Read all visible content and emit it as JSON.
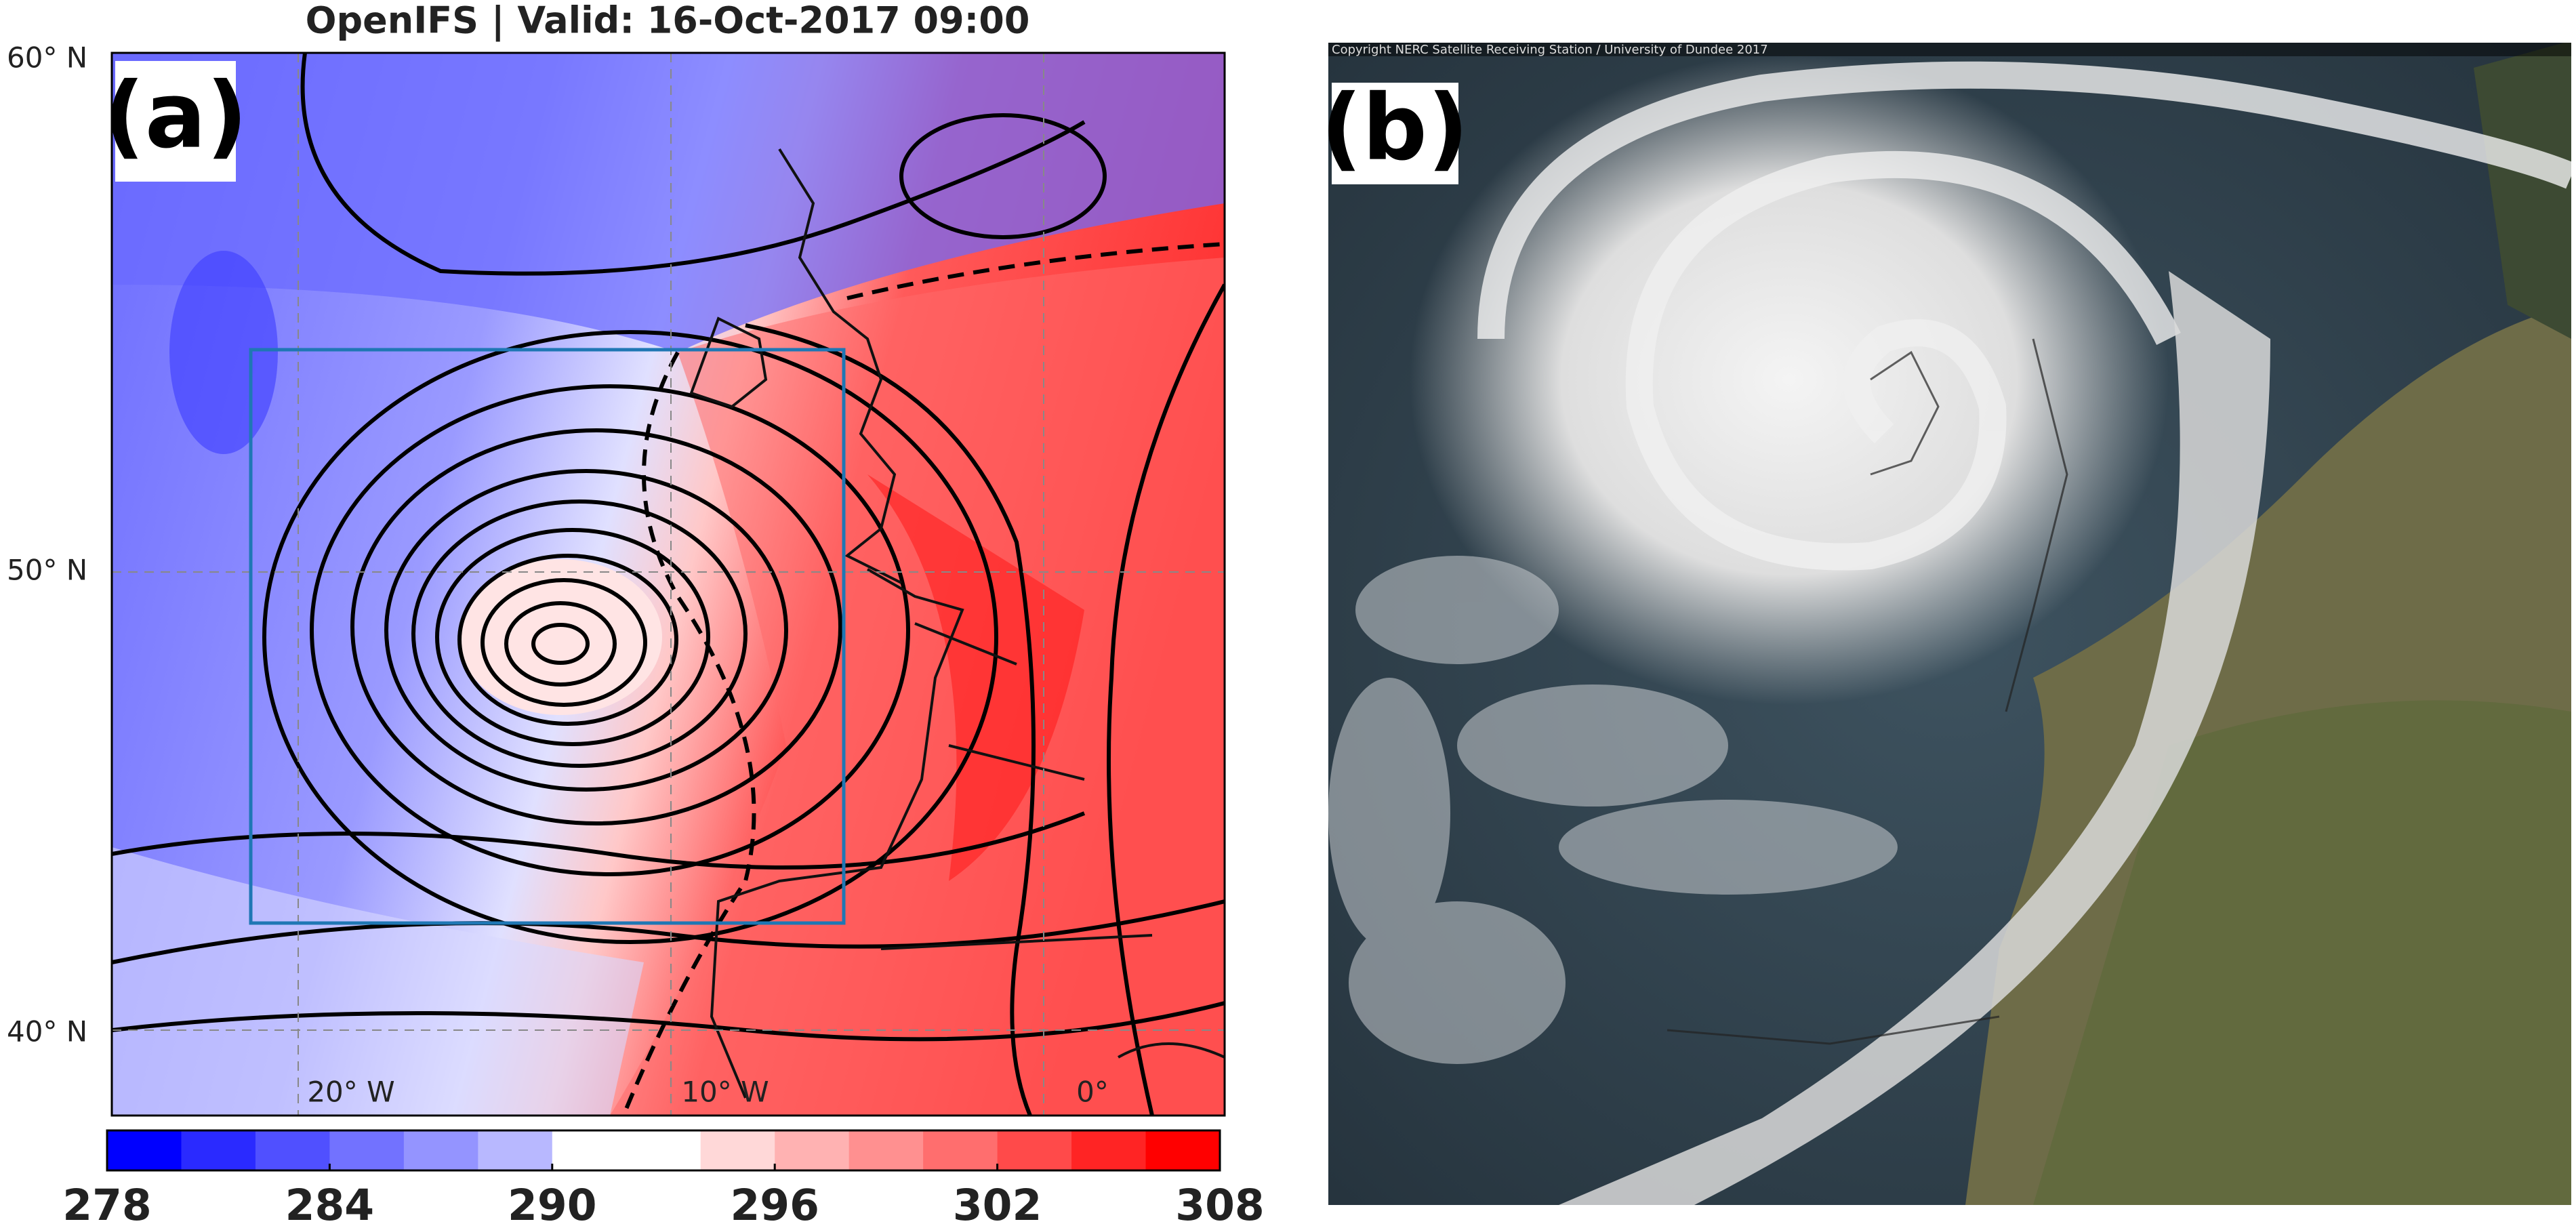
{
  "panel_a": {
    "title": "OpenIFS | Valid: 16-Oct-2017 09:00",
    "label": "(a)",
    "lat_labels": [
      "60° N",
      "50° N",
      "40° N"
    ],
    "lon_labels": [
      "20° W",
      "10° W",
      "0°"
    ],
    "colorbar": {
      "range": [
        278,
        308
      ],
      "ticks": [
        278,
        284,
        290,
        296,
        302,
        308
      ],
      "colors": [
        "#0000ff",
        "#2a2aff",
        "#5050ff",
        "#7272ff",
        "#9494ff",
        "#b8b8ff",
        "#ffffff",
        "#ffffff",
        "#ffd8d8",
        "#ffb2b2",
        "#ff9090",
        "#ff6e6e",
        "#ff4a4a",
        "#ff2424",
        "#ff0000"
      ]
    }
  },
  "panel_b": {
    "label": "(b)",
    "copyright": "Copyright NERC Satellite Receiving Station / University of Dundee 2017"
  }
}
